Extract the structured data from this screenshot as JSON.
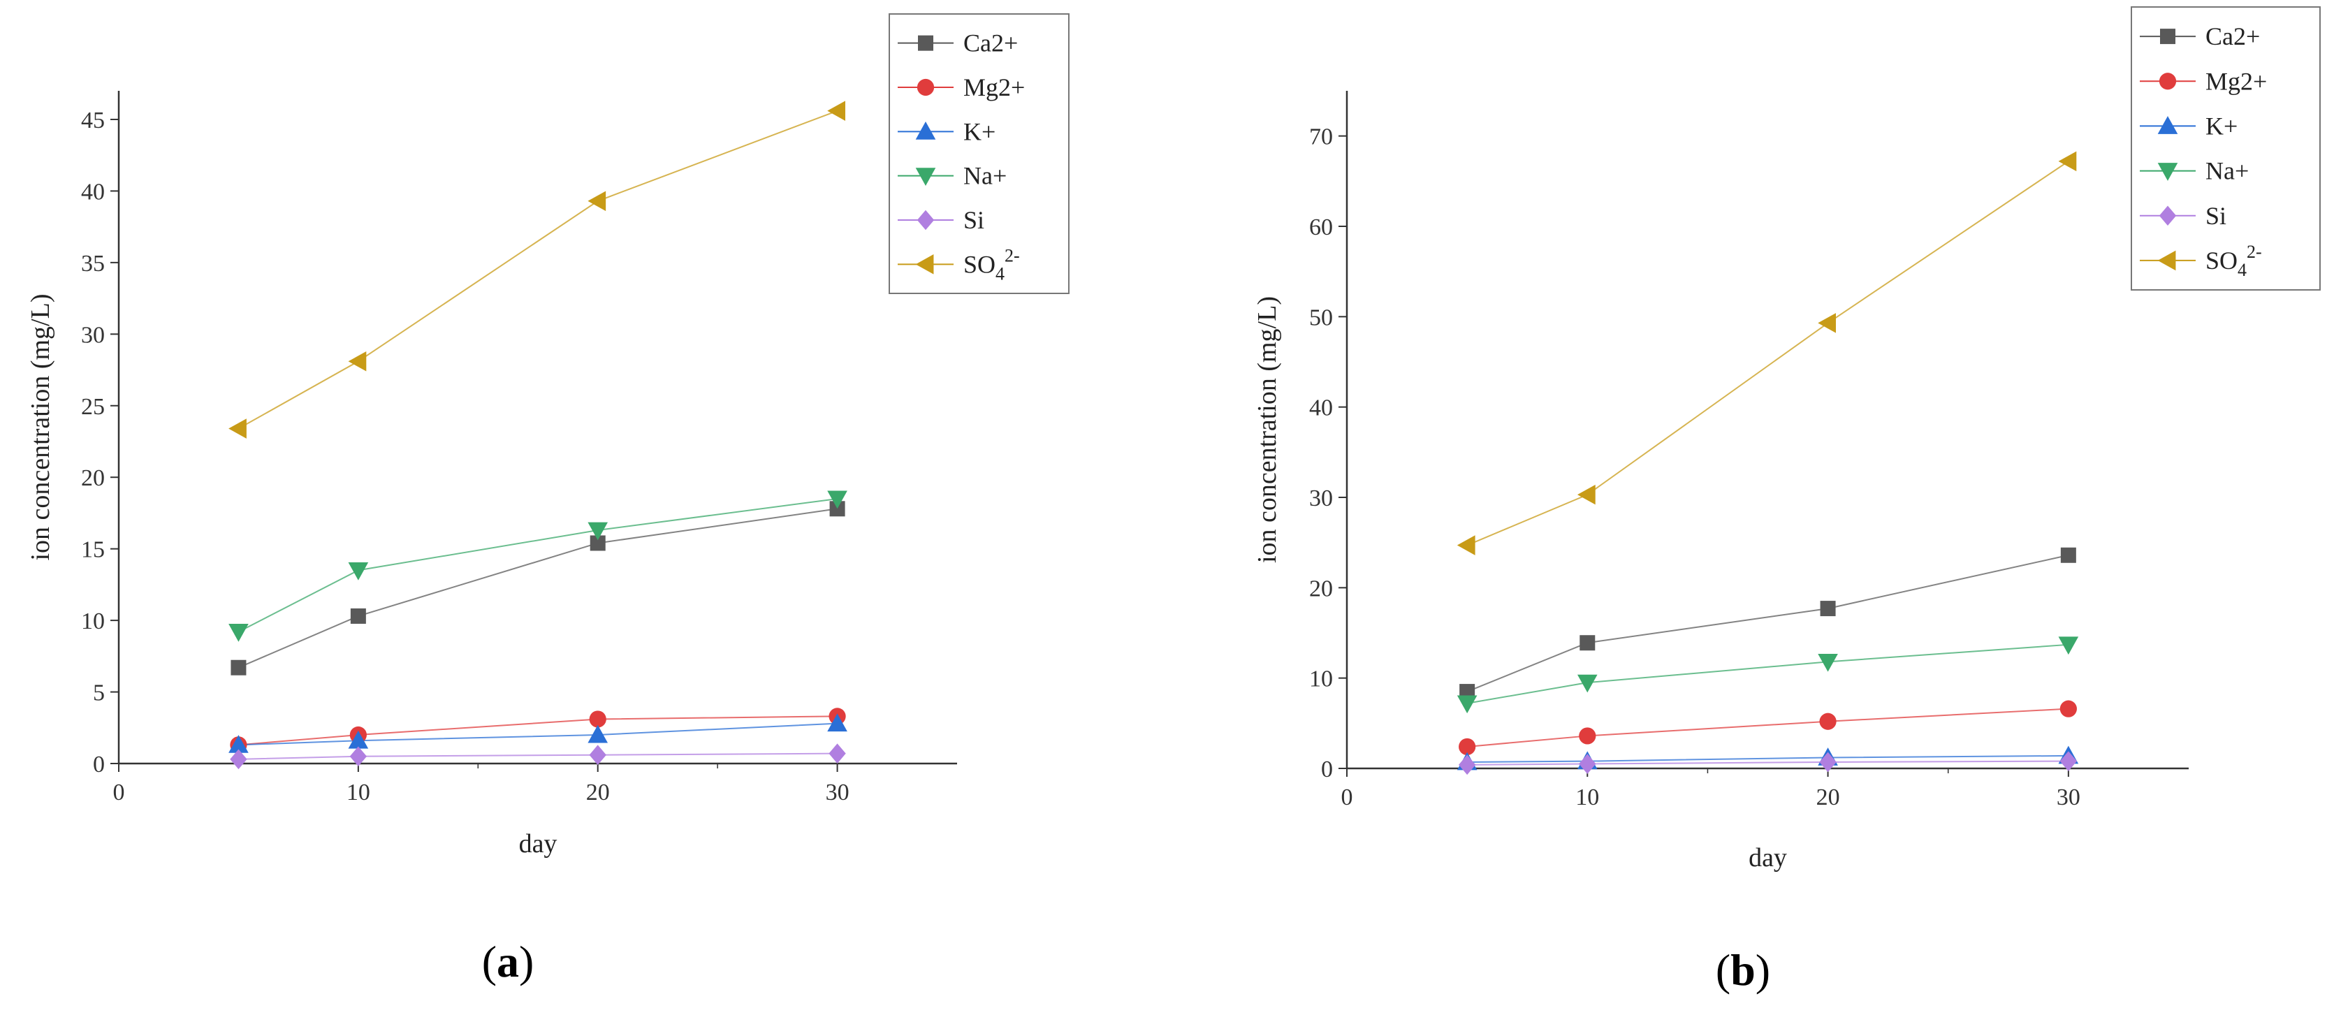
{
  "chart_data": [
    {
      "id": "a",
      "type": "line",
      "panel_label": {
        "open": "(",
        "letter": "a",
        "close": ")"
      },
      "xlabel": "day",
      "ylabel": "ion concentration (mg/L)",
      "xlim": [
        0,
        35
      ],
      "ylim": [
        0,
        47
      ],
      "xticks": [
        0,
        10,
        20,
        30
      ],
      "yticks": [
        0,
        5,
        10,
        15,
        20,
        25,
        30,
        35,
        40,
        45
      ],
      "x": [
        5,
        10,
        20,
        30
      ],
      "grid": false,
      "legend_position": "top-right",
      "series": [
        {
          "name": "Ca2+",
          "color": "#595959",
          "marker": "square",
          "values": [
            6.7,
            10.3,
            15.4,
            17.8
          ]
        },
        {
          "name": "Mg2+",
          "color": "#e03c3c",
          "marker": "circle",
          "values": [
            1.3,
            2.0,
            3.1,
            3.3
          ]
        },
        {
          "name": "K+",
          "color": "#2a6fd6",
          "marker": "triangle-up",
          "values": [
            1.3,
            1.6,
            2.0,
            2.8
          ]
        },
        {
          "name": "Na+",
          "color": "#3aa86a",
          "marker": "triangle-down",
          "values": [
            9.2,
            13.5,
            16.3,
            18.5
          ]
        },
        {
          "name": "Si",
          "color": "#b07fe0",
          "marker": "diamond",
          "values": [
            0.3,
            0.5,
            0.6,
            0.7
          ]
        },
        {
          "name": "SO4 2-",
          "label_base": "SO",
          "label_sub": "4",
          "label_sup": "2-",
          "color": "#c89b17",
          "marker": "triangle-left",
          "values": [
            23.4,
            28.1,
            39.3,
            45.6
          ]
        }
      ]
    },
    {
      "id": "b",
      "type": "line",
      "panel_label": {
        "open": "(",
        "letter": "b",
        "close": ")"
      },
      "xlabel": "day",
      "ylabel": "ion concentration (mg/L)",
      "xlim": [
        0,
        35
      ],
      "ylim": [
        0,
        75
      ],
      "xticks": [
        0,
        10,
        20,
        30
      ],
      "yticks": [
        0,
        10,
        20,
        30,
        40,
        50,
        60,
        70
      ],
      "x": [
        5,
        10,
        20,
        30
      ],
      "grid": false,
      "legend_position": "top-right",
      "series": [
        {
          "name": "Ca2+",
          "color": "#595959",
          "marker": "square",
          "values": [
            8.5,
            13.9,
            17.7,
            23.6
          ]
        },
        {
          "name": "Mg2+",
          "color": "#e03c3c",
          "marker": "circle",
          "values": [
            2.4,
            3.6,
            5.2,
            6.6
          ]
        },
        {
          "name": "K+",
          "color": "#2a6fd6",
          "marker": "triangle-up",
          "values": [
            0.7,
            0.8,
            1.2,
            1.4
          ]
        },
        {
          "name": "Na+",
          "color": "#3aa86a",
          "marker": "triangle-down",
          "values": [
            7.2,
            9.5,
            11.8,
            13.7
          ]
        },
        {
          "name": "Si",
          "color": "#b07fe0",
          "marker": "diamond",
          "values": [
            0.4,
            0.5,
            0.7,
            0.8
          ]
        },
        {
          "name": "SO4 2-",
          "label_base": "SO",
          "label_sub": "4",
          "label_sup": "2-",
          "color": "#c89b17",
          "marker": "triangle-left",
          "values": [
            24.7,
            30.3,
            49.3,
            67.2
          ]
        }
      ]
    }
  ]
}
